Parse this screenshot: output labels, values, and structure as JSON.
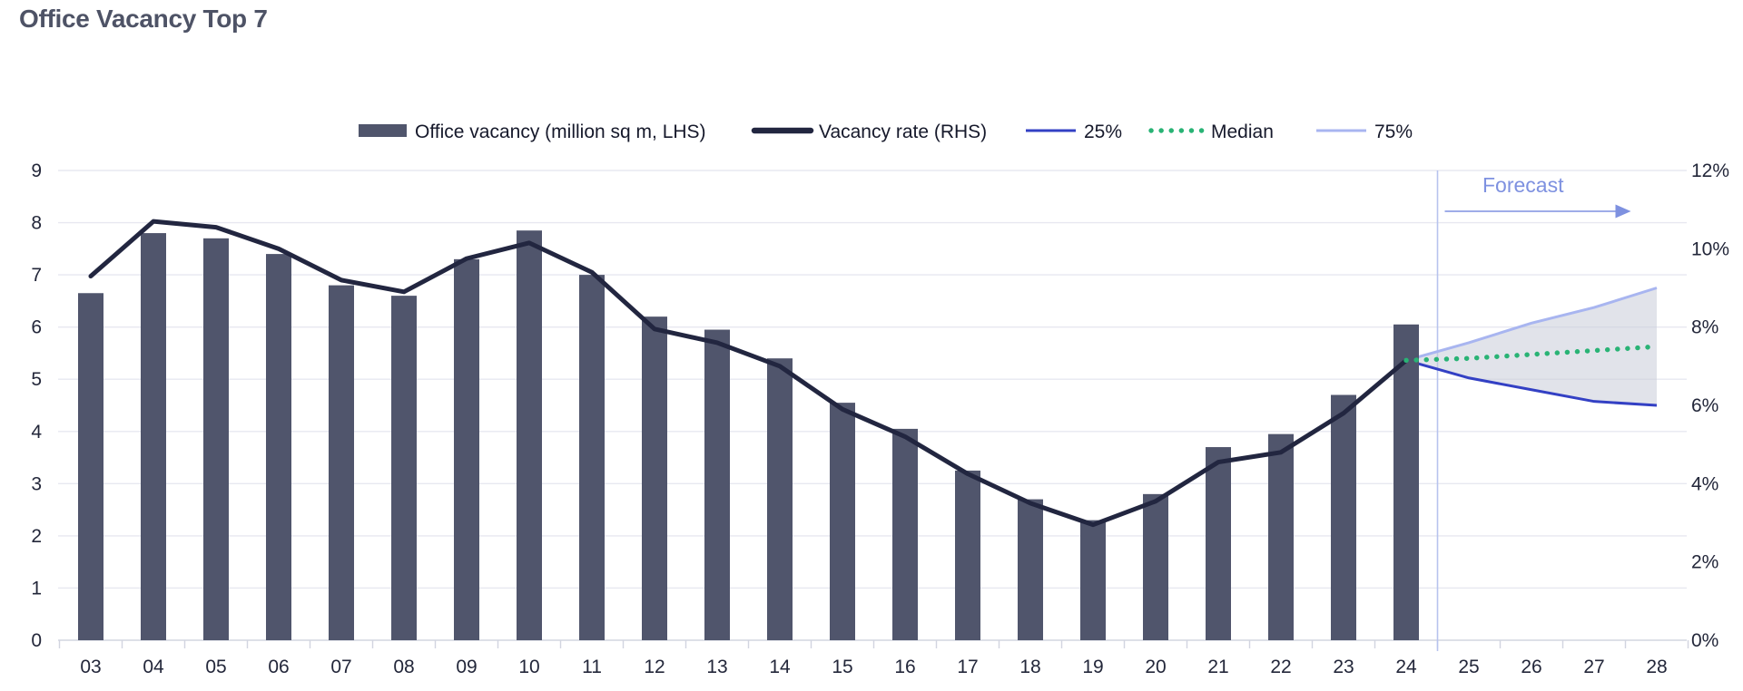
{
  "page_title": "Office Vacancy Top 7",
  "forecast_label": "Forecast",
  "legend": [
    {
      "label": "Office vacancy (million sq m, LHS)",
      "swatch": "bar",
      "color": "#50556c"
    },
    {
      "label": "Vacancy rate (RHS)",
      "swatch": "thick-line",
      "color": "#222640"
    },
    {
      "label": "25%",
      "swatch": "line",
      "color": "#3340c4"
    },
    {
      "label": "Median",
      "swatch": "dots",
      "color": "#29b375"
    },
    {
      "label": "75%",
      "swatch": "line",
      "color": "#a8b5f0"
    }
  ],
  "colors": {
    "bar": "#50556c",
    "rate_line": "#222640",
    "p25_line": "#3340c4",
    "median_line": "#29b375",
    "p75_line": "#a8b5f0",
    "fan_fill": "#c9ccd8",
    "gridline": "#e7e8f0",
    "axis_line": "#d2d5e0",
    "tick_label": "#23273a",
    "forecast_accent": "#7e91e0",
    "forecast_divider": "#b7c3ee"
  },
  "chart_data": {
    "type": "bar+line+fan",
    "title": "Office Vacancy Top 7",
    "categories": [
      "03",
      "04",
      "05",
      "06",
      "07",
      "08",
      "09",
      "10",
      "11",
      "12",
      "13",
      "14",
      "15",
      "16",
      "17",
      "18",
      "19",
      "20",
      "21",
      "22",
      "23",
      "24",
      "25",
      "26",
      "27",
      "28"
    ],
    "left_axis": {
      "label": "Office vacancy (million sq m)",
      "range": [
        0,
        9
      ],
      "ticks": [
        0,
        1,
        2,
        3,
        4,
        5,
        6,
        7,
        8,
        9
      ]
    },
    "right_axis": {
      "label": "Vacancy rate (%)",
      "range": [
        0,
        12
      ],
      "tick_values": [
        0,
        2,
        4,
        6,
        8,
        10,
        12
      ],
      "tick_labels": [
        "0%",
        "2%",
        "4%",
        "6%",
        "8%",
        "10%",
        "12%"
      ]
    },
    "grid": true,
    "legend_position": "top",
    "forecast_boundary_after_category": "24",
    "series": [
      {
        "name": "Office vacancy (million sq m, LHS)",
        "type": "bar",
        "axis": "left",
        "values": [
          6.65,
          7.8,
          7.7,
          7.4,
          6.8,
          6.6,
          7.3,
          7.85,
          7.0,
          6.2,
          5.95,
          5.4,
          4.55,
          4.05,
          3.25,
          2.7,
          2.3,
          2.8,
          3.7,
          3.95,
          4.7,
          6.05
        ]
      },
      {
        "name": "Vacancy rate (RHS)",
        "type": "line",
        "axis": "right",
        "unit": "%",
        "values": [
          9.3,
          10.7,
          10.55,
          10.0,
          9.2,
          8.9,
          9.75,
          10.15,
          9.4,
          7.95,
          7.6,
          7.0,
          5.9,
          5.2,
          4.25,
          3.5,
          2.95,
          3.55,
          4.55,
          4.8,
          5.8,
          7.15
        ]
      },
      {
        "name": "25%",
        "type": "line",
        "axis": "right",
        "unit": "%",
        "start_category": "24",
        "values": [
          7.15,
          6.7,
          6.4,
          6.1,
          6.0
        ]
      },
      {
        "name": "Median",
        "type": "dotted-line",
        "axis": "right",
        "unit": "%",
        "start_category": "24",
        "values": [
          7.15,
          7.2,
          7.3,
          7.4,
          7.5
        ]
      },
      {
        "name": "75%",
        "type": "line",
        "axis": "right",
        "unit": "%",
        "start_category": "24",
        "values": [
          7.15,
          7.6,
          8.1,
          8.5,
          9.0
        ]
      }
    ]
  }
}
